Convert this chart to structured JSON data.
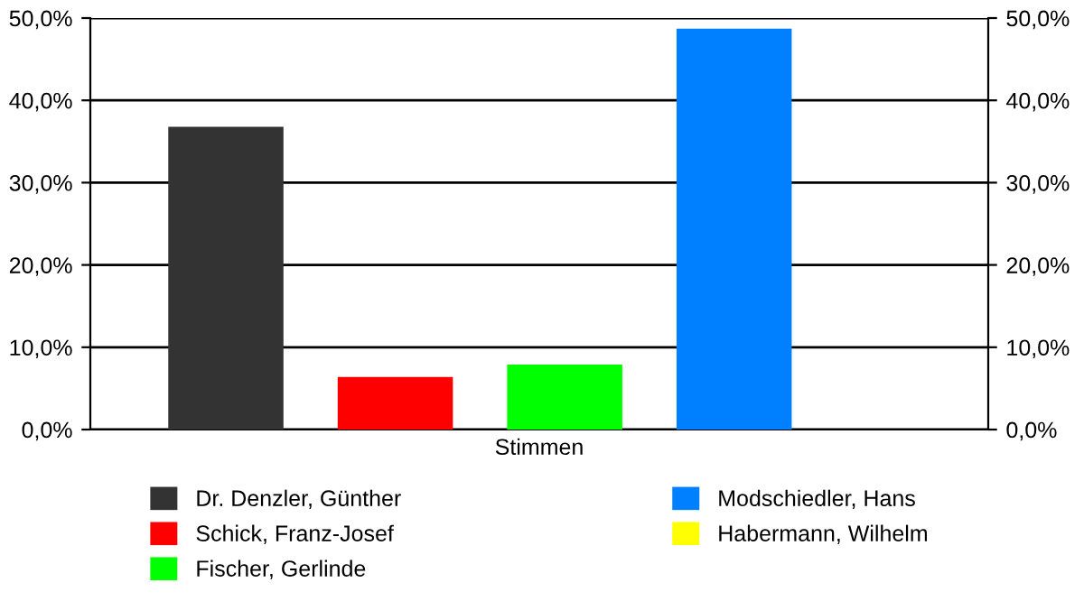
{
  "chart_data": {
    "type": "bar",
    "categories": [
      "Stimmen"
    ],
    "series": [
      {
        "name": "Dr. Denzler, Günther",
        "color": "#333333",
        "values": [
          36.8
        ]
      },
      {
        "name": "Schick, Franz-Josef",
        "color": "#ff0000",
        "values": [
          6.4
        ]
      },
      {
        "name": "Fischer, Gerlinde",
        "color": "#00ff00",
        "values": [
          7.9
        ]
      },
      {
        "name": "Modschiedler, Hans",
        "color": "#0080ff",
        "values": [
          48.7
        ]
      },
      {
        "name": "Habermann, Wilhelm",
        "color": "#ffff00",
        "values": [
          0
        ]
      }
    ],
    "ylim": [
      0,
      50
    ],
    "yticks": [
      {
        "value": 0,
        "label": "0,0%"
      },
      {
        "value": 10,
        "label": "10,0%"
      },
      {
        "value": 20,
        "label": "20,0%"
      },
      {
        "value": 30,
        "label": "30,0%"
      },
      {
        "value": 40,
        "label": "40,0%"
      },
      {
        "value": 50,
        "label": "50,0%"
      }
    ],
    "grid": "y",
    "legend": "bottom"
  }
}
